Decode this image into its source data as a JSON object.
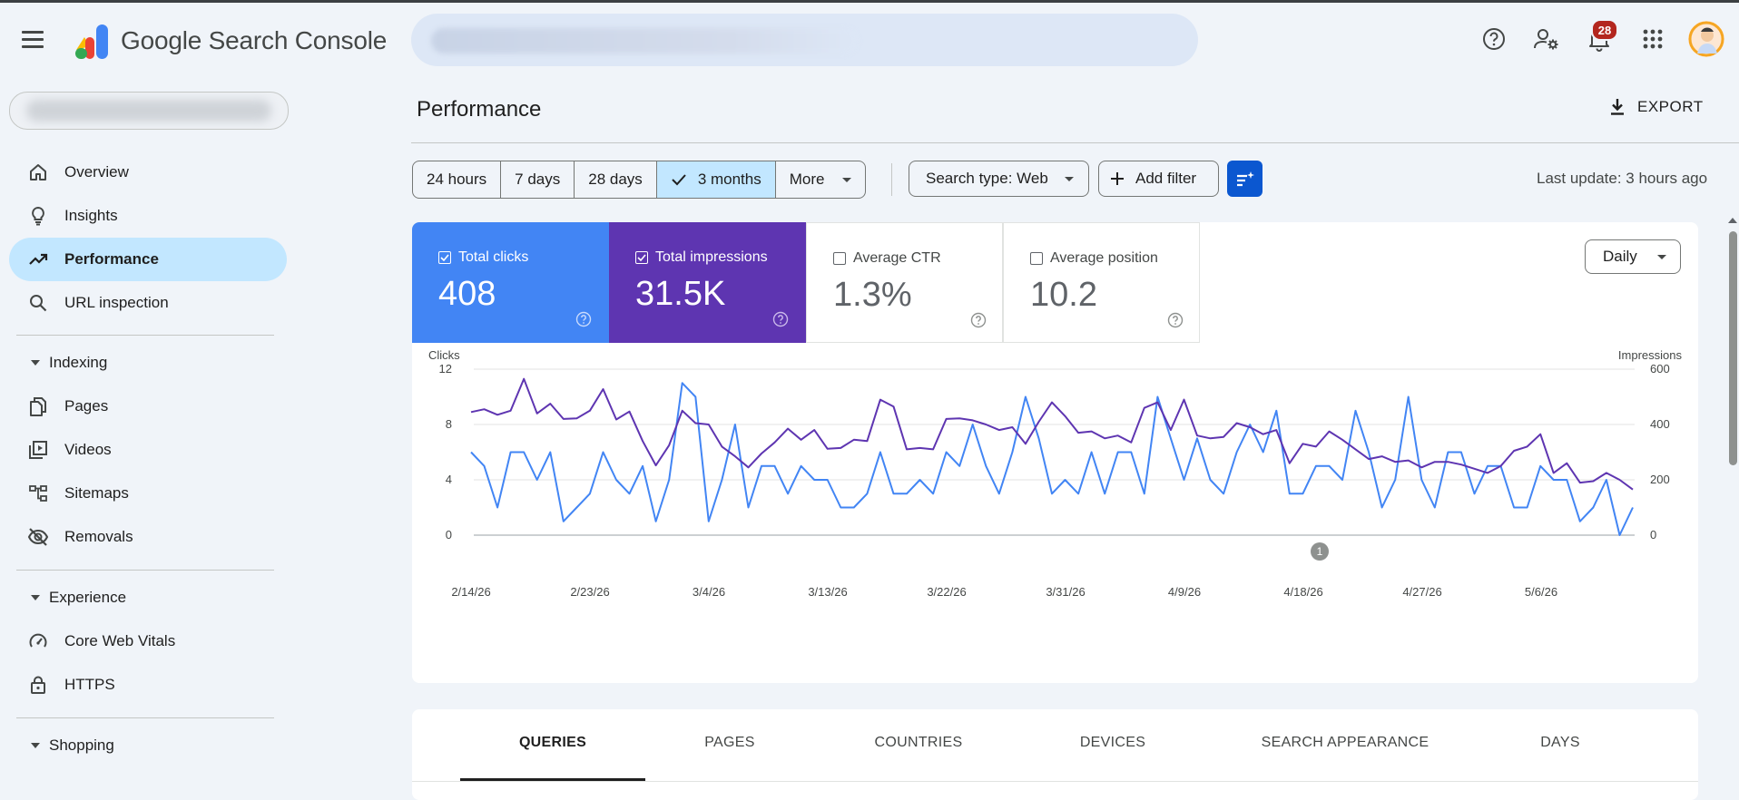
{
  "app": {
    "title": "Google Search Console"
  },
  "header": {
    "notification_count": "28",
    "icons": [
      "help-icon",
      "manage-users-icon",
      "notifications-icon",
      "apps-grid-icon"
    ]
  },
  "sidebar": {
    "items_top": [
      {
        "label": "Overview",
        "icon": "home-icon"
      },
      {
        "label": "Insights",
        "icon": "lightbulb-icon"
      },
      {
        "label": "Performance",
        "icon": "trending-up-icon",
        "active": true
      },
      {
        "label": "URL inspection",
        "icon": "search-icon"
      }
    ],
    "indexing": {
      "label": "Indexing",
      "items": [
        {
          "label": "Pages",
          "icon": "pages-icon"
        },
        {
          "label": "Videos",
          "icon": "video-icon"
        },
        {
          "label": "Sitemaps",
          "icon": "sitemap-icon"
        },
        {
          "label": "Removals",
          "icon": "visibility-off-icon"
        }
      ]
    },
    "experience": {
      "label": "Experience",
      "items": [
        {
          "label": "Core Web Vitals",
          "icon": "speed-icon"
        },
        {
          "label": "HTTPS",
          "icon": "lock-icon"
        }
      ]
    },
    "shopping": {
      "label": "Shopping"
    }
  },
  "main": {
    "page_title": "Performance",
    "export_label": "EXPORT",
    "date_ranges": [
      "24 hours",
      "7 days",
      "28 days",
      "3 months",
      "More"
    ],
    "selected_range": "3 months",
    "search_type": "Search type: Web",
    "add_filter": "Add filter",
    "last_update": "Last update: 3 hours ago",
    "granularity": "Daily",
    "metrics": [
      {
        "label": "Total clicks",
        "value": "408",
        "checked": true,
        "color": "#4285f4"
      },
      {
        "label": "Total impressions",
        "value": "31.5K",
        "checked": true,
        "color": "#5e35b1"
      },
      {
        "label": "Average CTR",
        "value": "1.3%",
        "checked": false
      },
      {
        "label": "Average position",
        "value": "10.2",
        "checked": false
      }
    ],
    "tabs": [
      "QUERIES",
      "PAGES",
      "COUNTRIES",
      "DEVICES",
      "SEARCH APPEARANCE",
      "DAYS"
    ],
    "selected_tab": "QUERIES"
  },
  "chart_data": {
    "type": "line",
    "left_axis_label": "Clicks",
    "right_axis_label": "Impressions",
    "left_ticks": [
      "12",
      "8",
      "4",
      "0"
    ],
    "right_ticks": [
      "600",
      "400",
      "200",
      "0"
    ],
    "left_ylim": [
      0,
      12
    ],
    "right_ylim": [
      0,
      600
    ],
    "x_tick_labels": [
      "2/14/26",
      "2/23/26",
      "3/4/26",
      "3/13/26",
      "3/22/26",
      "3/31/26",
      "4/9/26",
      "4/18/26",
      "4/27/26",
      "5/6/26"
    ],
    "annotation": {
      "label": "1",
      "date": "4/21/26"
    },
    "series": [
      {
        "name": "Clicks",
        "axis": "left",
        "color": "#4285f4",
        "values": [
          6,
          5,
          2,
          6,
          6,
          4,
          6,
          1,
          2,
          3,
          6,
          4,
          3,
          5,
          1,
          4,
          11,
          10,
          1,
          4,
          8,
          2,
          5,
          5,
          3,
          5,
          4,
          4,
          2,
          2,
          3,
          6,
          3,
          3,
          4,
          3,
          6,
          5,
          8,
          5,
          3,
          6,
          10,
          7,
          3,
          4,
          3,
          6,
          3,
          6,
          6,
          3,
          10,
          7,
          4,
          7,
          4,
          3,
          6,
          8,
          6,
          9,
          3,
          3,
          5,
          5,
          4,
          9,
          6,
          2,
          4,
          10,
          4,
          2,
          6,
          6,
          3,
          5,
          5,
          2,
          2,
          5,
          4,
          4,
          1,
          2,
          4,
          0,
          2
        ]
      },
      {
        "name": "Impressions",
        "axis": "right",
        "color": "#5e35b1",
        "values": [
          445,
          455,
          435,
          450,
          565,
          440,
          475,
          420,
          422,
          450,
          528,
          418,
          447,
          340,
          252,
          325,
          450,
          405,
          400,
          320,
          285,
          245,
          295,
          335,
          385,
          345,
          380,
          312,
          315,
          345,
          340,
          490,
          465,
          310,
          315,
          310,
          420,
          422,
          415,
          400,
          380,
          390,
          330,
          410,
          480,
          430,
          370,
          375,
          350,
          360,
          335,
          460,
          480,
          380,
          490,
          360,
          350,
          355,
          405,
          390,
          365,
          380,
          260,
          330,
          320,
          375,
          345,
          310,
          275,
          285,
          265,
          270,
          245,
          265,
          265,
          255,
          240,
          225,
          250,
          305,
          320,
          365,
          225,
          260,
          190,
          195,
          225,
          200,
          165
        ]
      }
    ]
  }
}
